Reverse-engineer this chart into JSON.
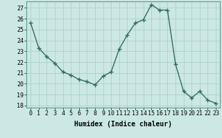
{
  "x": [
    0,
    1,
    2,
    3,
    4,
    5,
    6,
    7,
    8,
    9,
    10,
    11,
    12,
    13,
    14,
    15,
    16,
    17,
    18,
    19,
    20,
    21,
    22,
    23
  ],
  "y": [
    25.6,
    23.3,
    22.5,
    21.9,
    21.1,
    20.8,
    20.4,
    20.2,
    19.9,
    20.7,
    21.1,
    23.2,
    24.5,
    25.6,
    25.9,
    27.3,
    26.8,
    26.8,
    21.8,
    19.3,
    18.7,
    19.3,
    18.5,
    18.2
  ],
  "line_color": "#2e6b5e",
  "marker": "+",
  "marker_size": 4,
  "marker_linewidth": 1.0,
  "line_width": 1.0,
  "bg_color": "#cce8e4",
  "grid_color": "#aad0cb",
  "xlabel": "Humidex (Indice chaleur)",
  "xlim": [
    -0.5,
    23.5
  ],
  "ylim": [
    17.8,
    27.6
  ],
  "yticks": [
    18,
    19,
    20,
    21,
    22,
    23,
    24,
    25,
    26,
    27
  ],
  "xticks": [
    0,
    1,
    2,
    3,
    4,
    5,
    6,
    7,
    8,
    9,
    10,
    11,
    12,
    13,
    14,
    15,
    16,
    17,
    18,
    19,
    20,
    21,
    22,
    23
  ],
  "tick_fontsize": 6,
  "label_fontsize": 7,
  "font_family": "monospace"
}
